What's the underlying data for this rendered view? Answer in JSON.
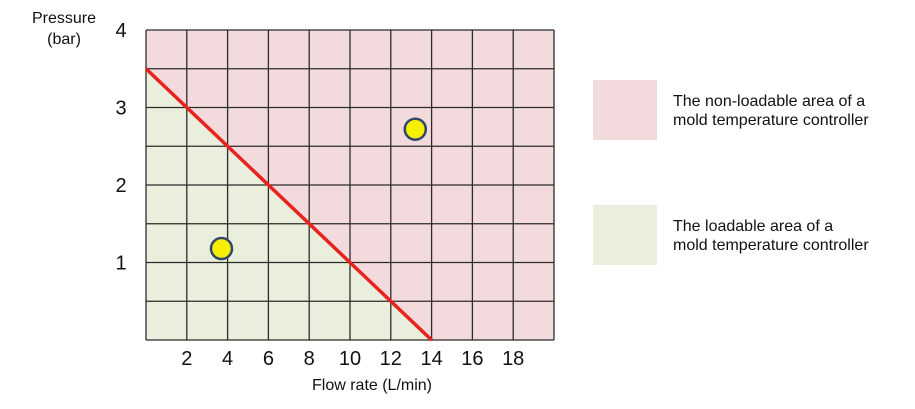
{
  "chart_data": {
    "type": "area",
    "xlabel": "Flow rate (L/min)",
    "ylabel_lines": [
      "Pressure",
      "(bar)"
    ],
    "xlim": [
      0,
      20
    ],
    "ylim": [
      0,
      4
    ],
    "x_ticks": [
      2,
      4,
      6,
      8,
      10,
      12,
      14,
      16,
      18
    ],
    "y_ticks": [
      1,
      2,
      3,
      4
    ],
    "grid": true,
    "grid_x_step": 2,
    "grid_y_step": 0.5,
    "limit_line": {
      "points": [
        [
          0,
          3.5
        ],
        [
          14,
          0
        ]
      ],
      "color": "#e8231e"
    },
    "regions": [
      {
        "id": "non-loadable",
        "color": "#f3dbdd",
        "legend_lines": [
          "The non-loadable area of a",
          "mold temperature controller"
        ]
      },
      {
        "id": "loadable",
        "color": "#e9efdc",
        "legend_lines": [
          "The loadable area of a",
          "mold temperature controller"
        ]
      }
    ],
    "points": [
      {
        "x": 3.7,
        "y": 1.18,
        "region": "loadable",
        "color": "#f6f000"
      },
      {
        "x": 13.2,
        "y": 2.72,
        "region": "non-loadable",
        "color": "#f6f000"
      }
    ],
    "legend_position": "right"
  }
}
